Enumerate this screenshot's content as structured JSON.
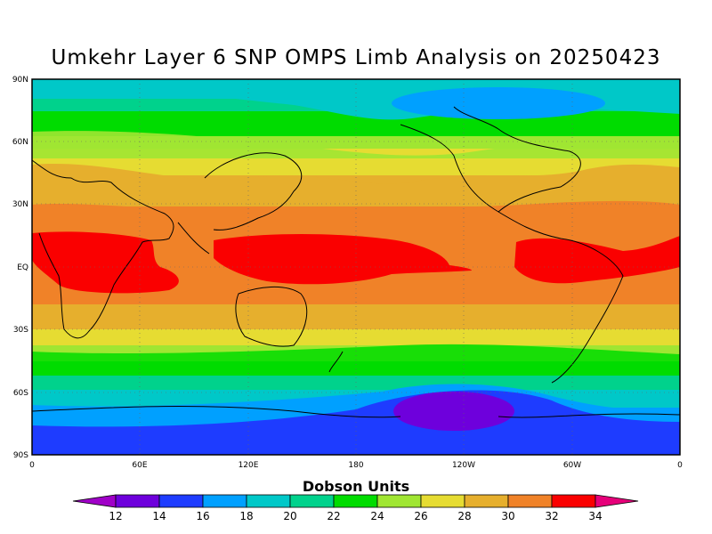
{
  "title": "Umkehr Layer 6 SNP OMPS Limb Analysis on 20250423",
  "lat_labels": [
    "90N",
    "60N",
    "30N",
    "EQ",
    "30S",
    "60S",
    "90S"
  ],
  "lon_labels": [
    "0",
    "60E",
    "120E",
    "180",
    "120W",
    "60W",
    "0"
  ],
  "colorbar": {
    "title": "Dobson Units",
    "ticks": [
      "12",
      "14",
      "16",
      "18",
      "20",
      "22",
      "24",
      "26",
      "28",
      "30",
      "32",
      "34"
    ],
    "colors": [
      "#a000c8",
      "#6e00dc",
      "#1e3cff",
      "#00a0ff",
      "#00c8c8",
      "#00d28c",
      "#00dc00",
      "#a0e632",
      "#e6dc32",
      "#e6af2d",
      "#f08228",
      "#fa0000",
      "#e6007a"
    ]
  },
  "map_data": {
    "variable": "ozone",
    "units": "Dobson Units",
    "lat_range": [
      -90,
      90
    ],
    "lon_range": [
      0,
      360
    ],
    "band_values_by_lat": [
      {
        "lat": 85,
        "value": 20
      },
      {
        "lat": 75,
        "value": 22
      },
      {
        "lat": 65,
        "value": 24
      },
      {
        "lat": 55,
        "value": 26
      },
      {
        "lat": 45,
        "value": 28
      },
      {
        "lat": 30,
        "value": 30
      },
      {
        "lat": 15,
        "value": 32
      },
      {
        "lat": 0,
        "value": 33
      },
      {
        "lat": -15,
        "value": 32
      },
      {
        "lat": -30,
        "value": 30
      },
      {
        "lat": -40,
        "value": 28
      },
      {
        "lat": -50,
        "value": 26
      },
      {
        "lat": -55,
        "value": 24
      },
      {
        "lat": -60,
        "value": 22
      },
      {
        "lat": -65,
        "value": 20
      },
      {
        "lat": -70,
        "value": 18
      },
      {
        "lat": -80,
        "value": 16
      }
    ],
    "minimum_region": {
      "lon_range": [
        215,
        265
      ],
      "lat_range": [
        -65,
        -80
      ],
      "value": 14
    }
  }
}
